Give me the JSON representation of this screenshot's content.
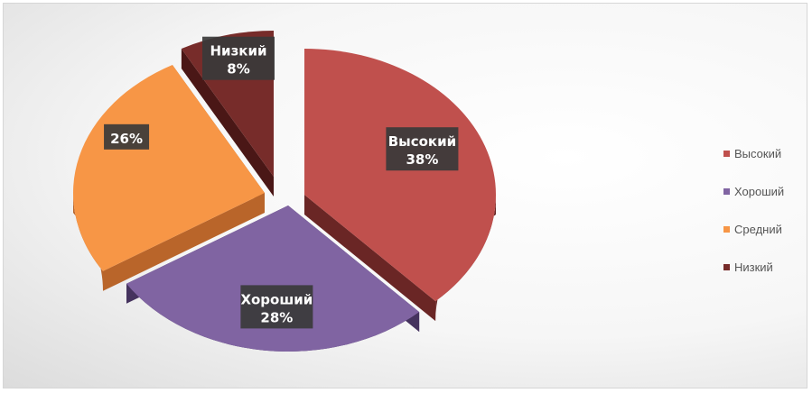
{
  "chart_data": {
    "type": "pie",
    "title": "",
    "legend_position": "right",
    "slices": [
      {
        "name": "Высокий",
        "value": 38,
        "value_label": "38%",
        "color": "#c0504d",
        "side_color": "#6a2625",
        "exploded": true
      },
      {
        "name": "Хороший",
        "value": 28,
        "value_label": "28%",
        "color": "#8064a2",
        "side_color": "#45335e",
        "exploded": true
      },
      {
        "name": "Средний",
        "value": 26,
        "value_label": "26%",
        "color": "#f79646",
        "side_color": "#b9652a",
        "exploded": true
      },
      {
        "name": "Низкий",
        "value": 8,
        "value_label": "8%",
        "color": "#772c2a",
        "side_color": "#4a1716",
        "exploded": true
      }
    ]
  }
}
